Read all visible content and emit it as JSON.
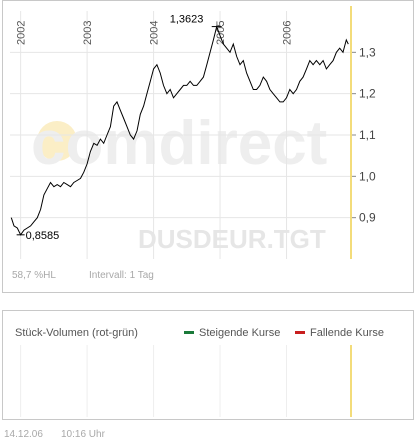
{
  "chart_data": {
    "type": "line",
    "x_tick_labels": [
      "2002",
      "2003",
      "2004",
      "2005",
      "2006"
    ],
    "y_tick_labels": [
      "0,9",
      "1,0",
      "1,1",
      "1,2",
      "1,3"
    ],
    "ylim": [
      0.8,
      1.4
    ],
    "grid": true,
    "series": [
      {
        "points": [
          [
            2001.86,
            0.9
          ],
          [
            2001.9,
            0.88
          ],
          [
            2001.95,
            0.875
          ],
          [
            2002.0,
            0.8585
          ],
          [
            2002.05,
            0.87
          ],
          [
            2002.1,
            0.875
          ],
          [
            2002.15,
            0.88
          ],
          [
            2002.2,
            0.89
          ],
          [
            2002.25,
            0.9
          ],
          [
            2002.3,
            0.92
          ],
          [
            2002.35,
            0.955
          ],
          [
            2002.4,
            0.97
          ],
          [
            2002.45,
            0.985
          ],
          [
            2002.5,
            0.975
          ],
          [
            2002.55,
            0.98
          ],
          [
            2002.6,
            0.975
          ],
          [
            2002.65,
            0.985
          ],
          [
            2002.7,
            0.98
          ],
          [
            2002.75,
            0.975
          ],
          [
            2002.8,
            0.985
          ],
          [
            2002.85,
            0.99
          ],
          [
            2002.9,
            0.995
          ],
          [
            2002.95,
            1.01
          ],
          [
            2003.0,
            1.03
          ],
          [
            2003.05,
            1.06
          ],
          [
            2003.1,
            1.08
          ],
          [
            2003.15,
            1.075
          ],
          [
            2003.2,
            1.09
          ],
          [
            2003.25,
            1.08
          ],
          [
            2003.3,
            1.1
          ],
          [
            2003.35,
            1.12
          ],
          [
            2003.4,
            1.17
          ],
          [
            2003.45,
            1.18
          ],
          [
            2003.5,
            1.16
          ],
          [
            2003.55,
            1.14
          ],
          [
            2003.6,
            1.12
          ],
          [
            2003.65,
            1.1
          ],
          [
            2003.7,
            1.09
          ],
          [
            2003.75,
            1.11
          ],
          [
            2003.8,
            1.15
          ],
          [
            2003.85,
            1.17
          ],
          [
            2003.9,
            1.2
          ],
          [
            2003.95,
            1.23
          ],
          [
            2004.0,
            1.26
          ],
          [
            2004.05,
            1.27
          ],
          [
            2004.1,
            1.25
          ],
          [
            2004.15,
            1.22
          ],
          [
            2004.2,
            1.2
          ],
          [
            2004.25,
            1.21
          ],
          [
            2004.3,
            1.19
          ],
          [
            2004.35,
            1.2
          ],
          [
            2004.4,
            1.21
          ],
          [
            2004.45,
            1.22
          ],
          [
            2004.5,
            1.22
          ],
          [
            2004.55,
            1.23
          ],
          [
            2004.6,
            1.22
          ],
          [
            2004.65,
            1.22
          ],
          [
            2004.7,
            1.23
          ],
          [
            2004.75,
            1.24
          ],
          [
            2004.8,
            1.27
          ],
          [
            2004.85,
            1.3
          ],
          [
            2004.9,
            1.33
          ],
          [
            2004.95,
            1.3623
          ],
          [
            2005.0,
            1.34
          ],
          [
            2005.05,
            1.32
          ],
          [
            2005.1,
            1.31
          ],
          [
            2005.15,
            1.3
          ],
          [
            2005.2,
            1.32
          ],
          [
            2005.25,
            1.29
          ],
          [
            2005.3,
            1.27
          ],
          [
            2005.35,
            1.28
          ],
          [
            2005.4,
            1.25
          ],
          [
            2005.45,
            1.23
          ],
          [
            2005.5,
            1.21
          ],
          [
            2005.55,
            1.21
          ],
          [
            2005.6,
            1.22
          ],
          [
            2005.65,
            1.24
          ],
          [
            2005.7,
            1.23
          ],
          [
            2005.75,
            1.21
          ],
          [
            2005.8,
            1.2
          ],
          [
            2005.85,
            1.19
          ],
          [
            2005.9,
            1.18
          ],
          [
            2005.95,
            1.18
          ],
          [
            2006.0,
            1.19
          ],
          [
            2006.05,
            1.21
          ],
          [
            2006.1,
            1.2
          ],
          [
            2006.15,
            1.21
          ],
          [
            2006.2,
            1.23
          ],
          [
            2006.25,
            1.24
          ],
          [
            2006.3,
            1.26
          ],
          [
            2006.35,
            1.28
          ],
          [
            2006.4,
            1.27
          ],
          [
            2006.45,
            1.28
          ],
          [
            2006.5,
            1.27
          ],
          [
            2006.55,
            1.28
          ],
          [
            2006.6,
            1.26
          ],
          [
            2006.65,
            1.27
          ],
          [
            2006.7,
            1.28
          ],
          [
            2006.75,
            1.3
          ],
          [
            2006.8,
            1.31
          ],
          [
            2006.85,
            1.3
          ],
          [
            2006.9,
            1.33
          ],
          [
            2006.93,
            1.32
          ]
        ]
      }
    ],
    "annotations": {
      "max_label": "1,3623",
      "min_label": "0,8585"
    },
    "watermark": "comdirect",
    "symbol": "DUSDEUR.TGT"
  },
  "footer": {
    "perf": "58,7 %HL",
    "interval": "Intervall: 1 Tag",
    "date": "14.12.06",
    "time": "10:16 Uhr"
  },
  "volume": {
    "title": "Stück-Volumen (rot-grün)",
    "legend_up": "Steigende Kurse",
    "legend_down": "Fallende Kurse",
    "up_color": "#1a7a3a",
    "down_color": "#c81e1e"
  },
  "colors": {
    "grid": "#e6e6e6",
    "today_line": "#f3dc7a",
    "line": "#000000"
  }
}
